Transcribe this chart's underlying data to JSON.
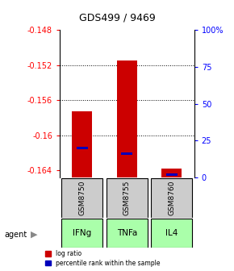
{
  "title": "GDS499 / 9469",
  "samples": [
    "GSM8750",
    "GSM8755",
    "GSM8760"
  ],
  "agents": [
    "IFNg",
    "TNFa",
    "IL4"
  ],
  "log_ratios": [
    -0.1573,
    -0.1515,
    -0.1638
  ],
  "percentile_ranks_pct": [
    20,
    16,
    2
  ],
  "baseline": -0.1648,
  "ylim_left": [
    -0.1648,
    -0.148
  ],
  "ylim_right": [
    0,
    100
  ],
  "left_ticks": [
    -0.164,
    -0.16,
    -0.156,
    -0.152,
    -0.148
  ],
  "right_ticks": [
    0,
    25,
    50,
    75,
    100
  ],
  "right_tick_labels": [
    "0",
    "25",
    "50",
    "75",
    "100%"
  ],
  "dotted_lines": [
    -0.152,
    -0.156,
    -0.16
  ],
  "bar_color": "#cc0000",
  "percentile_color": "#0000bb",
  "sample_box_color": "#cccccc",
  "agent_box_color": "#aaffaa",
  "legend_bar_label": "log ratio",
  "legend_pct_label": "percentile rank within the sample"
}
